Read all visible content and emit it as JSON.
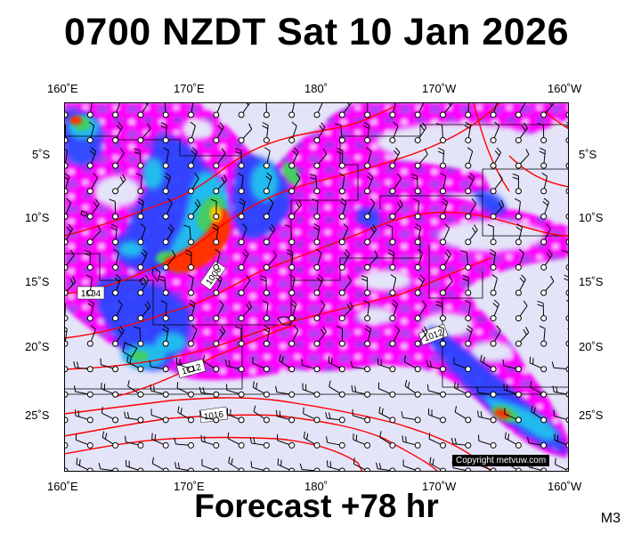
{
  "title": "0700 NZDT Sat 10 Jan 2026",
  "footer": "Forecast +78 hr",
  "model_code": "M3",
  "copyright": "Copyright metvuw.com",
  "axes": {
    "top_lon_labels": [
      "160˚E",
      "170˚E",
      "180˚",
      "170˚W",
      "160˚W"
    ],
    "bottom_lon_labels": [
      "160˚E",
      "170˚E",
      "180˚",
      "170˚W",
      "160˚W"
    ],
    "left_lat_labels": [
      "5˚S",
      "10˚S",
      "15˚S",
      "20˚S",
      "25˚S"
    ],
    "right_lat_labels": [
      "5˚S",
      "10˚S",
      "15˚S",
      "20˚S",
      "25˚S"
    ]
  },
  "isobar_labels": [
    "1004",
    "1008",
    "1012",
    "1012",
    "1016"
  ],
  "colors": {
    "background_sea": "#e4e4f8",
    "rain_magenta": "#ff00ff",
    "rain_purple": "#aa33ee",
    "rain_blue": "#2244ff",
    "rain_cyan": "#22bbee",
    "rain_green": "#44cc77",
    "rain_red": "#ff3300",
    "isobar": "#ff0000"
  }
}
